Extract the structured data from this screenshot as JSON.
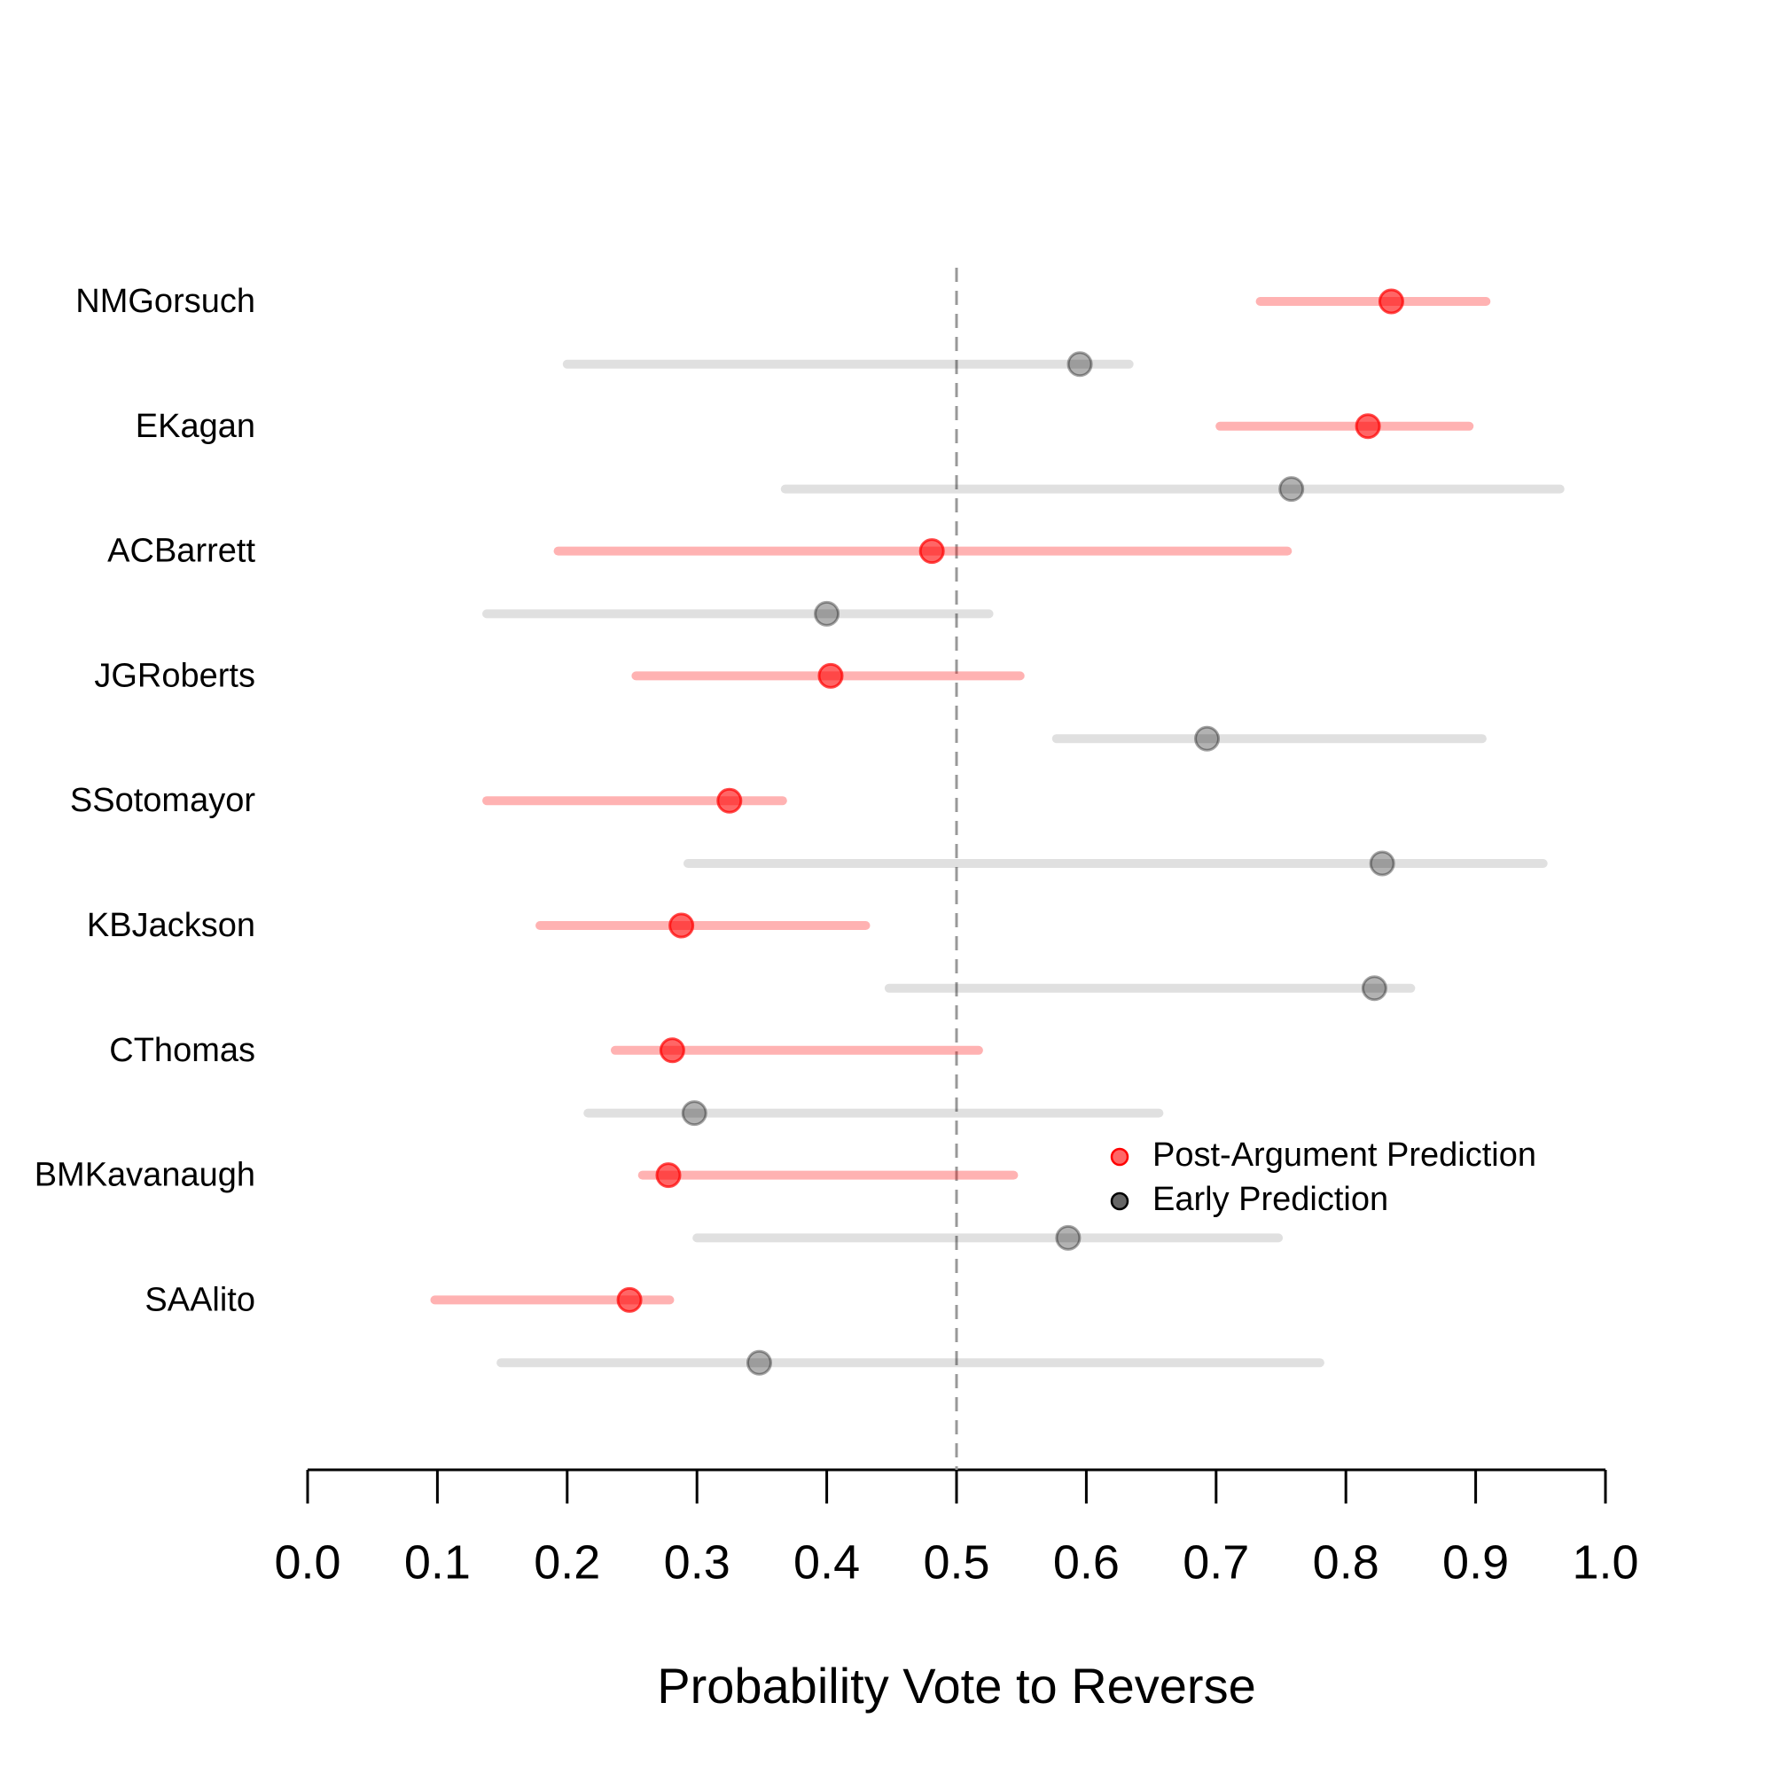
{
  "chart_data": {
    "type": "interval_dot",
    "categories": [
      "NMGorsuch",
      "EKagan",
      "ACBarrett",
      "JGRoberts",
      "SSotomayor",
      "KBJackson",
      "CThomas",
      "BMKavanaugh",
      "SAAlito"
    ],
    "series": [
      {
        "name": "Post-Argument Prediction",
        "color": "#ff0000",
        "values": [
          0.835,
          0.817,
          0.481,
          0.403,
          0.325,
          0.288,
          0.281,
          0.278,
          0.248
        ],
        "low": [
          0.734,
          0.703,
          0.193,
          0.253,
          0.138,
          0.179,
          0.237,
          0.258,
          0.098
        ],
        "high": [
          0.908,
          0.895,
          0.755,
          0.549,
          0.366,
          0.43,
          0.517,
          0.544,
          0.279
        ]
      },
      {
        "name": "Early Prediction",
        "color": "#000000",
        "values": [
          0.595,
          0.758,
          0.4,
          0.693,
          0.828,
          0.822,
          0.298,
          0.586,
          0.348
        ],
        "low": [
          0.2,
          0.368,
          0.138,
          0.577,
          0.293,
          0.448,
          0.216,
          0.3,
          0.149
        ],
        "high": [
          0.633,
          0.965,
          0.525,
          0.905,
          0.952,
          0.85,
          0.656,
          0.748,
          0.78
        ]
      }
    ],
    "xlabel": "Probability Vote to Reverse",
    "xlim": [
      0,
      1
    ],
    "xticks": [
      {
        "value": 0,
        "label": "0.0"
      },
      0.1,
      0.2,
      0.3,
      0.4,
      0.5,
      0.6,
      0.7,
      0.8,
      0.9,
      {
        "value": 1,
        "label": "1.0"
      }
    ],
    "reference_line": 0.5,
    "legend": "right"
  }
}
